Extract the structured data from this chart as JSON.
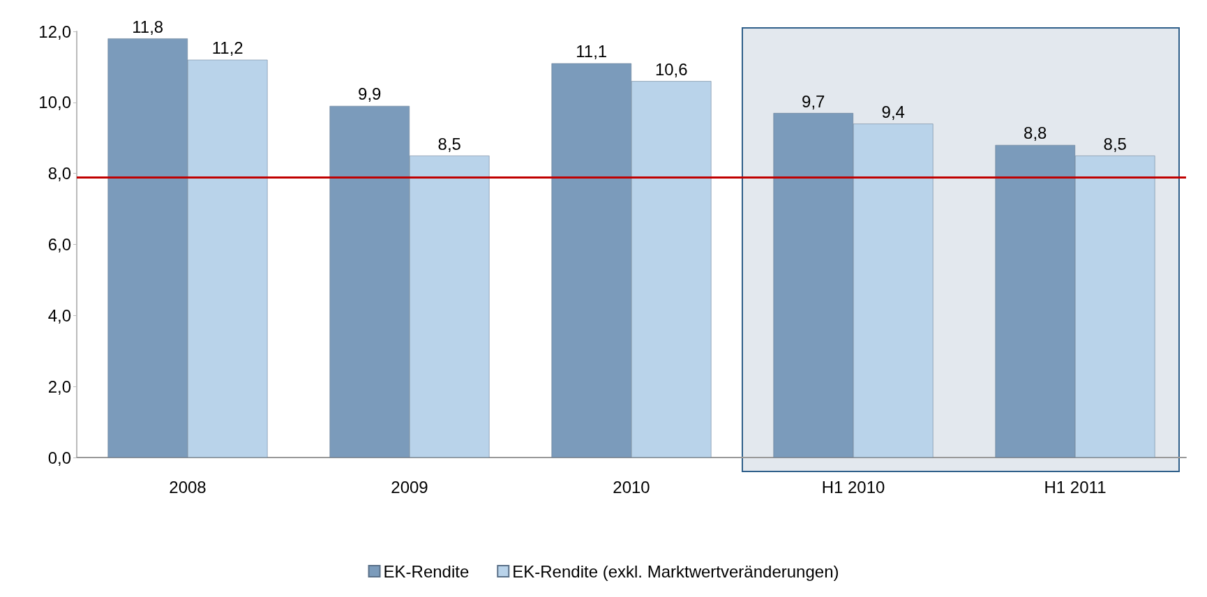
{
  "chart_data": {
    "type": "bar",
    "categories": [
      "2008",
      "2009",
      "2010",
      "H1 2010",
      "H1 2011"
    ],
    "series": [
      {
        "name": "EK-Rendite",
        "color": "#7b9bbb",
        "values": [
          11.8,
          9.9,
          11.1,
          9.7,
          8.8
        ],
        "value_labels": [
          "11,8",
          "9,9",
          "11,1",
          "9,7",
          "8,8"
        ]
      },
      {
        "name": "EK-Rendite (exkl. Marktwertveränderungen)",
        "color": "#b9d3ea",
        "values": [
          11.2,
          8.5,
          10.6,
          9.4,
          8.5
        ],
        "value_labels": [
          "11,2",
          "8,5",
          "10,6",
          "9,4",
          "8,5"
        ]
      }
    ],
    "ylim": [
      0,
      12
    ],
    "yticks": [
      {
        "value": 0,
        "label": "0,0"
      },
      {
        "value": 2,
        "label": "2,0"
      },
      {
        "value": 4,
        "label": "4,0"
      },
      {
        "value": 6,
        "label": "6,0"
      },
      {
        "value": 8,
        "label": "8,0"
      },
      {
        "value": 10,
        "label": "10,0"
      },
      {
        "value": 12,
        "label": "12,0"
      }
    ],
    "ref_lines": [
      {
        "axis": "y",
        "value": 7.9,
        "color": "#c00000"
      }
    ],
    "bands": [
      {
        "axis": "x",
        "from": "H1 2010",
        "to": "H1 2011",
        "color": "#e3e8ee"
      }
    ],
    "grid": false,
    "legend": "bottom"
  }
}
